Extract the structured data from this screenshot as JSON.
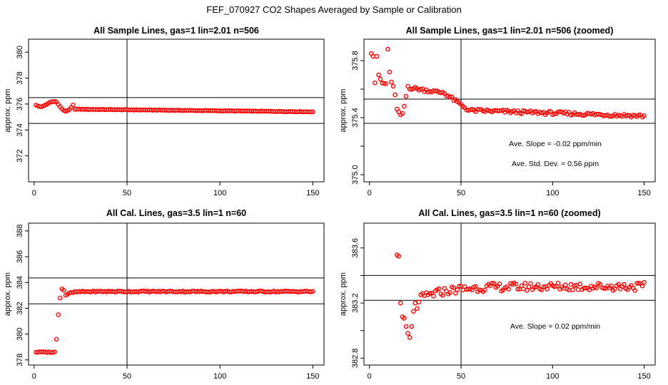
{
  "title": "FEF_070927  CO2 Shapes Averaged by Sample or Calibration",
  "chart_data": [
    {
      "type": "scatter",
      "title": "All Sample Lines, gas=1 lin=2.01 n=506",
      "ylabel": "approx. ppm",
      "xlabel": "",
      "xlim": [
        -3,
        156
      ],
      "ylim": [
        370,
        381
      ],
      "xticks": [
        0,
        50,
        100,
        150
      ],
      "yticks": [
        372,
        374,
        376,
        378,
        380
      ],
      "vline": 50,
      "hlines": [
        376.5,
        374.5
      ],
      "marker_color": "#ff0000",
      "series": [
        {
          "x": [],
          "y": []
        }
      ],
      "annotations": []
    },
    {
      "type": "scatter",
      "title": "All Sample Lines, gas=1 lin=2.01 n=506 (zoomed)",
      "ylabel": "approx. ppm",
      "xlabel": "",
      "xlim": [
        -3,
        156
      ],
      "ylim": [
        374.95,
        375.95
      ],
      "xticks": [
        0,
        50,
        100,
        150
      ],
      "yticks": [
        375.0,
        375.2,
        375.4,
        375.6,
        375.8
      ],
      "ytick_labels": [
        "375.0",
        "",
        "375.4",
        "",
        "375.8"
      ],
      "vline": 50,
      "hlines": [
        375.53,
        375.36
      ],
      "marker_color": "#ff0000",
      "series": [
        {
          "x": [],
          "y": []
        }
      ],
      "annotations": [
        "Ave. Slope =  -0.02  ppm/min",
        "Ave. Std. Dev. =  0.56  ppm"
      ]
    },
    {
      "type": "scatter",
      "title": "All Cal. Lines, gas=3.5 lin=1 n=60",
      "ylabel": "approx. ppm",
      "xlabel": "",
      "xlim": [
        -3,
        156
      ],
      "ylim": [
        377.6,
        388.6
      ],
      "xticks": [
        0,
        50,
        100,
        150
      ],
      "yticks": [
        378,
        380,
        382,
        384,
        386,
        388
      ],
      "vline": 50,
      "hlines": [
        384.35,
        382.35
      ],
      "marker_color": "#ff0000",
      "series": [
        {
          "x": [],
          "y": []
        }
      ],
      "annotations": []
    },
    {
      "type": "scatter",
      "title": "All Cal. Lines, gas=3.5 lin=1 n=60 (zoomed)",
      "ylabel": "approx. ppm",
      "xlabel": "",
      "xlim": [
        -3,
        156
      ],
      "ylim": [
        382.75,
        383.78
      ],
      "xticks": [
        0,
        50,
        100,
        150
      ],
      "yticks": [
        382.8,
        383.0,
        383.2,
        383.4,
        383.6
      ],
      "ytick_labels": [
        "382.8",
        "",
        "383.2",
        "",
        "383.6"
      ],
      "vline": 50,
      "hlines": [
        383.4,
        383.22
      ],
      "marker_color": "#ff0000",
      "series": [
        {
          "x": [],
          "y": []
        }
      ],
      "annotations": [
        "Ave. Slope =  0.02  ppm/min"
      ]
    }
  ]
}
